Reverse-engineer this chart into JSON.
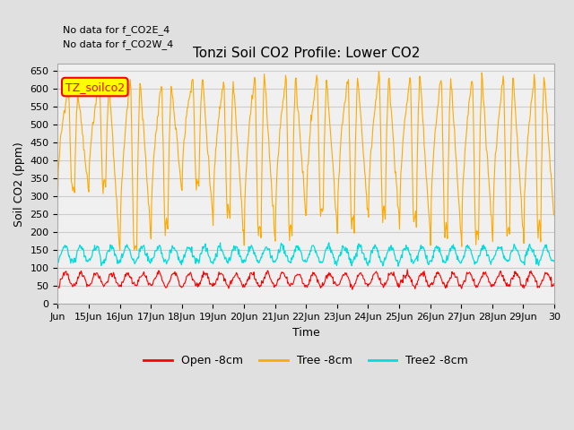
{
  "title": "Tonzi Soil CO2 Profile: Lower CO2",
  "ylabel": "Soil CO2 (ppm)",
  "xlabel": "Time",
  "annotations": [
    "No data for f_CO2E_4",
    "No data for f_CO2W_4"
  ],
  "legend_box_label": "TZ_soilco2",
  "legend_entries": [
    "Open -8cm",
    "Tree -8cm",
    "Tree2 -8cm"
  ],
  "line_colors": [
    "#ff0000",
    "#ffaa00",
    "#00dddd"
  ],
  "yticks": [
    0,
    50,
    100,
    150,
    200,
    250,
    300,
    350,
    400,
    450,
    500,
    550,
    600,
    650
  ],
  "ylim": [
    0,
    670
  ],
  "x_tick_labels": [
    "Jun",
    "15Jun",
    "16Jun",
    "17Jun",
    "18Jun",
    "19Jun",
    "20Jun",
    "21Jun",
    "22Jun",
    "23Jun",
    "24Jun",
    "25Jun",
    "26Jun",
    "27Jun",
    "28Jun",
    "29Jun",
    "30"
  ],
  "background_color": "#e0e0e0",
  "plot_bg_color": "#f0f0f0",
  "grid_color": "#cccccc",
  "days": 16
}
